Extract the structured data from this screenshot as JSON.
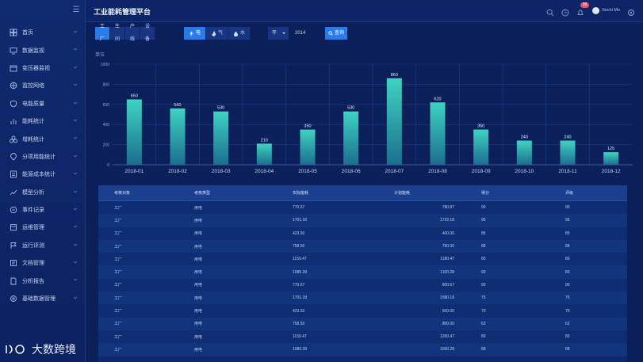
{
  "app": {
    "title": "工业能耗管理平台",
    "username": "Sechi Mo",
    "notification_count": "99"
  },
  "sidebar": {
    "items": [
      {
        "label": "首页",
        "icon": "grid-icon"
      },
      {
        "label": "数据监视",
        "icon": "monitor-icon"
      },
      {
        "label": "变压器监视",
        "icon": "calendar-icon"
      },
      {
        "label": "监控网络",
        "icon": "network-icon"
      },
      {
        "label": "电能质量",
        "icon": "shield-icon"
      },
      {
        "label": "能耗统计",
        "icon": "bar-chart-icon"
      },
      {
        "label": "增耗统计",
        "icon": "cluster-icon"
      },
      {
        "label": "分项用能统计",
        "icon": "pin-icon"
      },
      {
        "label": "能源成本统计",
        "icon": "cost-icon"
      },
      {
        "label": "模型分析",
        "icon": "trend-icon"
      },
      {
        "label": "事件记录",
        "icon": "event-icon"
      },
      {
        "label": "运维管理",
        "icon": "tool-icon"
      },
      {
        "label": "运行评测",
        "icon": "flag-icon"
      },
      {
        "label": "文档管理",
        "icon": "doc-icon"
      },
      {
        "label": "分析报告",
        "icon": "report-icon"
      },
      {
        "label": "基础数据管理",
        "icon": "settings-icon"
      }
    ],
    "brand": "大数跨境"
  },
  "filters": {
    "scope_tabs": [
      "工厂",
      "车间",
      "产线",
      "设备"
    ],
    "scope_active": 0,
    "energy_tabs": [
      "电",
      "气",
      "水"
    ],
    "energy_active": 0,
    "period": "年",
    "year": "2014",
    "query_label": "查询"
  },
  "chart_data": {
    "type": "bar",
    "ylabel": "单位",
    "ylim": [
      0,
      1000
    ],
    "yticks": [
      0,
      200,
      400,
      600,
      800,
      1000
    ],
    "categories": [
      "2018-01",
      "2018-02",
      "2018-03",
      "2018-04",
      "2018-05",
      "2018-06",
      "2018-07",
      "2018-08",
      "2018-09",
      "2018-10",
      "2018-11",
      "2018-12"
    ],
    "values": [
      650,
      560,
      530,
      210,
      350,
      530,
      860,
      620,
      350,
      240,
      240,
      125
    ],
    "grid": true,
    "bar_color_top": "#3fd3c1",
    "bar_color_bottom": "#1b6e8f"
  },
  "table": {
    "columns": [
      "考核对象",
      "考核类型",
      "实际能耗",
      "计划能耗",
      "得分",
      "评级"
    ],
    "rows": [
      [
        "工厂",
        "用电",
        "770.67",
        "780.87",
        "90",
        "90"
      ],
      [
        "工厂",
        "用电",
        "1701.18",
        "1722.18",
        "95",
        "95"
      ],
      [
        "工厂",
        "用电",
        "423.50",
        "400.00",
        "85",
        "85"
      ],
      [
        "工厂",
        "用电",
        "758.50",
        "750.00",
        "88",
        "88"
      ],
      [
        "工厂",
        "用电",
        "1159.47",
        "1180.47",
        "80",
        "80"
      ],
      [
        "工厂",
        "用电",
        "1085.28",
        "1100.28",
        "90",
        "80"
      ],
      [
        "工厂",
        "用电",
        "770.67",
        "800.67",
        "90",
        "90"
      ],
      [
        "工厂",
        "用电",
        "1701.18",
        "1580.18",
        "75",
        "75"
      ],
      [
        "工厂",
        "用电",
        "423.50",
        "600.00",
        "70",
        "70"
      ],
      [
        "工厂",
        "用电",
        "758.50",
        "800.00",
        "62",
        "62"
      ],
      [
        "工厂",
        "用电",
        "1159.47",
        "1200.47",
        "80",
        "80"
      ],
      [
        "工厂",
        "用电",
        "1085.28",
        "1000.28",
        "88",
        "88"
      ]
    ]
  }
}
